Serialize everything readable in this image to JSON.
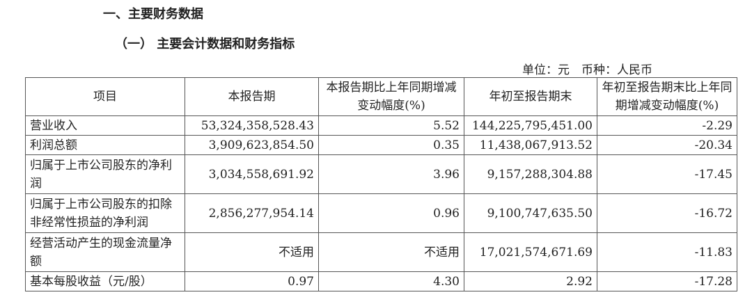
{
  "section_title": "一、主要财务数据",
  "subsection_title": "（一） 主要会计数据和财务指标",
  "unit_note": "单位：元　币种：人民币",
  "table": {
    "headers": [
      "项目",
      "本报告期",
      "本报告期比上年同期增减变动幅度(%)",
      "年初至报告期末",
      "年初至报告期末比上年同期增减变动幅度(%)"
    ],
    "rows": [
      {
        "item": "营业收入",
        "current": "53,324,358,528.43",
        "current_change": "5.52",
        "ytd": "144,225,795,451.00",
        "ytd_change": "-2.29"
      },
      {
        "item": "利润总额",
        "current": "3,909,623,854.50",
        "current_change": "0.35",
        "ytd": "11,438,067,913.52",
        "ytd_change": "-20.34"
      },
      {
        "item": "归属于上市公司股东的净利润",
        "current": "3,034,558,691.92",
        "current_change": "3.96",
        "ytd": "9,157,288,304.88",
        "ytd_change": "-17.45"
      },
      {
        "item": "归属于上市公司股东的扣除非经常性损益的净利润",
        "current": "2,856,277,954.14",
        "current_change": "0.96",
        "ytd": "9,100,747,635.50",
        "ytd_change": "-16.72"
      },
      {
        "item": "经营活动产生的现金流量净额",
        "current": "不适用",
        "current_change": "不适用",
        "ytd": "17,021,574,671.69",
        "ytd_change": "-11.83"
      },
      {
        "item": "基本每股收益（元/股）",
        "current": "0.97",
        "current_change": "4.30",
        "ytd": "2.92",
        "ytd_change": "-17.28"
      }
    ]
  }
}
